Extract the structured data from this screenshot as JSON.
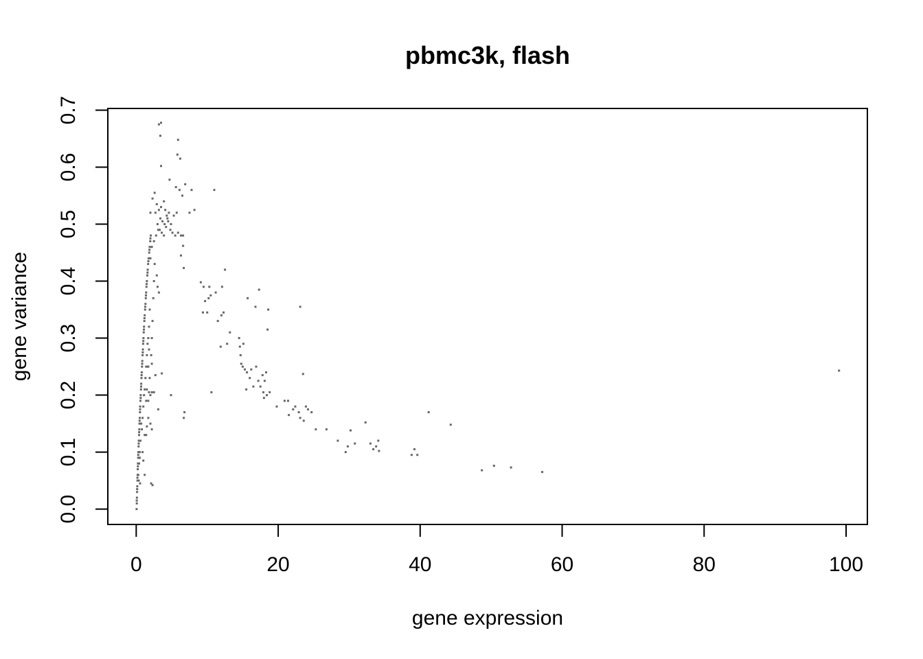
{
  "chart_data": {
    "type": "scatter",
    "title": "pbmc3k, flash",
    "xlabel": "gene expression",
    "ylabel": "gene variance",
    "xlim": [
      -4,
      103
    ],
    "ylim": [
      -0.027,
      0.703
    ],
    "x_ticks": [
      0,
      20,
      40,
      60,
      80,
      100
    ],
    "y_ticks": [
      0.0,
      0.1,
      0.2,
      0.3,
      0.4,
      0.5,
      0.6,
      0.7
    ],
    "x_tick_labels": [
      "0",
      "20",
      "40",
      "60",
      "80",
      "100"
    ],
    "y_tick_labels": [
      "0.0",
      "0.1",
      "0.2",
      "0.3",
      "0.4",
      "0.5",
      "0.6",
      "0.7"
    ],
    "point_color": "#666666",
    "grid": false,
    "legend": "none",
    "points": [
      [
        0.05,
        0.0
      ],
      [
        0.08,
        0.01
      ],
      [
        0.1,
        0.02
      ],
      [
        0.12,
        0.03
      ],
      [
        0.15,
        0.04
      ],
      [
        0.18,
        0.05
      ],
      [
        0.2,
        0.06
      ],
      [
        0.22,
        0.07
      ],
      [
        0.25,
        0.08
      ],
      [
        0.28,
        0.09
      ],
      [
        0.3,
        0.1
      ],
      [
        0.33,
        0.11
      ],
      [
        0.36,
        0.12
      ],
      [
        0.4,
        0.13
      ],
      [
        0.43,
        0.14
      ],
      [
        0.46,
        0.15
      ],
      [
        0.5,
        0.16
      ],
      [
        0.53,
        0.17
      ],
      [
        0.56,
        0.18
      ],
      [
        0.6,
        0.19
      ],
      [
        0.63,
        0.2
      ],
      [
        0.67,
        0.21
      ],
      [
        0.7,
        0.22
      ],
      [
        0.74,
        0.23
      ],
      [
        0.78,
        0.24
      ],
      [
        0.82,
        0.25
      ],
      [
        0.86,
        0.26
      ],
      [
        0.9,
        0.27
      ],
      [
        0.94,
        0.28
      ],
      [
        0.98,
        0.29
      ],
      [
        1.02,
        0.3
      ],
      [
        1.06,
        0.31
      ],
      [
        1.1,
        0.32
      ],
      [
        1.15,
        0.33
      ],
      [
        1.2,
        0.34
      ],
      [
        1.25,
        0.35
      ],
      [
        1.3,
        0.36
      ],
      [
        1.35,
        0.37
      ],
      [
        1.4,
        0.38
      ],
      [
        1.45,
        0.39
      ],
      [
        1.5,
        0.4
      ],
      [
        1.56,
        0.41
      ],
      [
        1.62,
        0.42
      ],
      [
        1.68,
        0.43
      ],
      [
        1.75,
        0.44
      ],
      [
        1.82,
        0.45
      ],
      [
        1.9,
        0.46
      ],
      [
        1.98,
        0.47
      ],
      [
        2.05,
        0.48
      ],
      [
        0.07,
        0.015
      ],
      [
        0.13,
        0.035
      ],
      [
        0.17,
        0.055
      ],
      [
        0.24,
        0.075
      ],
      [
        0.29,
        0.095
      ],
      [
        0.35,
        0.115
      ],
      [
        0.41,
        0.135
      ],
      [
        0.48,
        0.155
      ],
      [
        0.55,
        0.175
      ],
      [
        0.62,
        0.195
      ],
      [
        0.69,
        0.215
      ],
      [
        0.76,
        0.235
      ],
      [
        0.84,
        0.255
      ],
      [
        0.92,
        0.275
      ],
      [
        1.0,
        0.295
      ],
      [
        1.08,
        0.315
      ],
      [
        1.17,
        0.335
      ],
      [
        1.27,
        0.355
      ],
      [
        1.37,
        0.375
      ],
      [
        1.47,
        0.395
      ],
      [
        1.59,
        0.415
      ],
      [
        1.71,
        0.435
      ],
      [
        1.86,
        0.455
      ],
      [
        2.0,
        0.475
      ],
      [
        0.3,
        0.06
      ],
      [
        0.35,
        0.05
      ],
      [
        0.4,
        0.08
      ],
      [
        0.5,
        0.1
      ],
      [
        0.6,
        0.12
      ],
      [
        0.7,
        0.15
      ],
      [
        0.8,
        0.14
      ],
      [
        0.9,
        0.16
      ],
      [
        1.0,
        0.18
      ],
      [
        1.1,
        0.2
      ],
      [
        0.55,
        0.045
      ],
      [
        1.2,
        0.21
      ],
      [
        1.3,
        0.23
      ],
      [
        1.4,
        0.25
      ],
      [
        1.5,
        0.27
      ],
      [
        1.6,
        0.29
      ],
      [
        1.7,
        0.3
      ],
      [
        1.8,
        0.32
      ],
      [
        1.9,
        0.35
      ],
      [
        1.0,
        0.085
      ],
      [
        1.2,
        0.13
      ],
      [
        1.5,
        0.145
      ],
      [
        1.7,
        0.16
      ],
      [
        2.0,
        0.2
      ],
      [
        2.1,
        0.27
      ],
      [
        2.2,
        0.3
      ],
      [
        2.3,
        0.33
      ],
      [
        2.4,
        0.37
      ],
      [
        2.5,
        0.4
      ],
      [
        2.1,
        0.045
      ],
      [
        2.3,
        0.042
      ],
      [
        1.7,
        0.19
      ],
      [
        1.8,
        0.205
      ],
      [
        2.2,
        0.205
      ],
      [
        2.5,
        0.205
      ],
      [
        2.0,
        0.15
      ],
      [
        2.2,
        0.14
      ],
      [
        1.9,
        0.23
      ],
      [
        1.6,
        0.25
      ],
      [
        1.8,
        0.28
      ],
      [
        2.2,
        0.255
      ],
      [
        1.4,
        0.19
      ],
      [
        1.5,
        0.21
      ],
      [
        1.7,
        0.25
      ],
      [
        2.0,
        0.44
      ],
      [
        2.2,
        0.46
      ],
      [
        2.5,
        0.47
      ],
      [
        2.8,
        0.48
      ],
      [
        3.1,
        0.49
      ],
      [
        2.6,
        0.43
      ],
      [
        2.9,
        0.41
      ],
      [
        2.0,
        0.52
      ],
      [
        2.3,
        0.545
      ],
      [
        2.6,
        0.555
      ],
      [
        2.9,
        0.535
      ],
      [
        3.2,
        0.525
      ],
      [
        3.4,
        0.51
      ],
      [
        3.7,
        0.505
      ],
      [
        4.0,
        0.5
      ],
      [
        4.3,
        0.515
      ],
      [
        4.6,
        0.52
      ],
      [
        3.0,
        0.5
      ],
      [
        3.3,
        0.49
      ],
      [
        3.6,
        0.485
      ],
      [
        3.9,
        0.48
      ],
      [
        4.2,
        0.495
      ],
      [
        4.5,
        0.505
      ],
      [
        4.8,
        0.49
      ],
      [
        5.1,
        0.485
      ],
      [
        5.5,
        0.48
      ],
      [
        5.9,
        0.485
      ],
      [
        6.3,
        0.48
      ],
      [
        6.6,
        0.48
      ],
      [
        2.7,
        0.52
      ],
      [
        3.5,
        0.53
      ],
      [
        3.9,
        0.54
      ],
      [
        4.1,
        0.525
      ],
      [
        4.4,
        0.51
      ],
      [
        4.9,
        0.5
      ],
      [
        5.3,
        0.515
      ],
      [
        5.7,
        0.52
      ],
      [
        6.1,
        0.56
      ],
      [
        6.5,
        0.55
      ],
      [
        5.6,
        0.565
      ],
      [
        4.7,
        0.578
      ],
      [
        6.9,
        0.57
      ],
      [
        7.8,
        0.56
      ],
      [
        8.2,
        0.525
      ],
      [
        7.5,
        0.52
      ],
      [
        3.2,
        0.675
      ],
      [
        3.5,
        0.678
      ],
      [
        3.4,
        0.655
      ],
      [
        5.9,
        0.648
      ],
      [
        5.8,
        0.622
      ],
      [
        6.2,
        0.615
      ],
      [
        3.5,
        0.602
      ],
      [
        6.3,
        0.445
      ],
      [
        6.6,
        0.462
      ],
      [
        6.7,
        0.423
      ],
      [
        3.0,
        0.39
      ],
      [
        3.2,
        0.38
      ],
      [
        2.7,
        0.235
      ],
      [
        3.6,
        0.238
      ],
      [
        4.9,
        0.2
      ],
      [
        3.1,
        0.175
      ],
      [
        6.7,
        0.16
      ],
      [
        6.8,
        0.17
      ],
      [
        1.2,
        0.06
      ],
      [
        1.4,
        0.13
      ],
      [
        0.5,
        0.09
      ],
      [
        0.9,
        0.1
      ],
      [
        9.1,
        0.398
      ],
      [
        9.5,
        0.39
      ],
      [
        10.3,
        0.39
      ],
      [
        9.7,
        0.365
      ],
      [
        10.5,
        0.375
      ],
      [
        11.2,
        0.38
      ],
      [
        12.1,
        0.39
      ],
      [
        12.5,
        0.42
      ],
      [
        9.4,
        0.345
      ],
      [
        10.0,
        0.345
      ],
      [
        10.2,
        0.37
      ],
      [
        11.5,
        0.33
      ],
      [
        12.0,
        0.34
      ],
      [
        12.3,
        0.345
      ],
      [
        11.0,
        0.56
      ],
      [
        10.6,
        0.205
      ],
      [
        11.9,
        0.285
      ],
      [
        12.8,
        0.29
      ],
      [
        13.2,
        0.31
      ],
      [
        14.5,
        0.3
      ],
      [
        14.6,
        0.285
      ],
      [
        14.7,
        0.27
      ],
      [
        14.8,
        0.255
      ],
      [
        15.0,
        0.25
      ],
      [
        15.3,
        0.245
      ],
      [
        15.6,
        0.24
      ],
      [
        15.1,
        0.29
      ],
      [
        15.5,
        0.21
      ],
      [
        16.0,
        0.23
      ],
      [
        16.2,
        0.245
      ],
      [
        16.5,
        0.215
      ],
      [
        16.9,
        0.25
      ],
      [
        17.2,
        0.225
      ],
      [
        17.5,
        0.215
      ],
      [
        17.8,
        0.235
      ],
      [
        18.1,
        0.225
      ],
      [
        18.3,
        0.24
      ],
      [
        17.9,
        0.205
      ],
      [
        18.0,
        0.195
      ],
      [
        18.4,
        0.2
      ],
      [
        18.8,
        0.205
      ],
      [
        17.3,
        0.385
      ],
      [
        16.8,
        0.355
      ],
      [
        15.7,
        0.37
      ],
      [
        18.6,
        0.35
      ],
      [
        18.5,
        0.315
      ],
      [
        23.1,
        0.355
      ],
      [
        23.5,
        0.237
      ],
      [
        19.8,
        0.18
      ],
      [
        20.9,
        0.19
      ],
      [
        21.4,
        0.19
      ],
      [
        21.5,
        0.165
      ],
      [
        22.1,
        0.175
      ],
      [
        22.4,
        0.18
      ],
      [
        22.9,
        0.17
      ],
      [
        23.1,
        0.16
      ],
      [
        23.6,
        0.155
      ],
      [
        23.9,
        0.18
      ],
      [
        24.2,
        0.175
      ],
      [
        24.7,
        0.17
      ],
      [
        25.3,
        0.14
      ],
      [
        26.8,
        0.14
      ],
      [
        28.4,
        0.12
      ],
      [
        29.5,
        0.1
      ],
      [
        29.8,
        0.11
      ],
      [
        30.2,
        0.138
      ],
      [
        30.8,
        0.115
      ],
      [
        32.3,
        0.152
      ],
      [
        33.0,
        0.115
      ],
      [
        33.4,
        0.105
      ],
      [
        33.8,
        0.11
      ],
      [
        34.1,
        0.12
      ],
      [
        34.2,
        0.102
      ],
      [
        38.8,
        0.095
      ],
      [
        39.2,
        0.105
      ],
      [
        39.6,
        0.095
      ],
      [
        41.2,
        0.17
      ],
      [
        44.3,
        0.148
      ],
      [
        48.7,
        0.068
      ],
      [
        50.4,
        0.076
      ],
      [
        52.8,
        0.073
      ],
      [
        57.2,
        0.065
      ],
      [
        99.0,
        0.243
      ]
    ]
  }
}
